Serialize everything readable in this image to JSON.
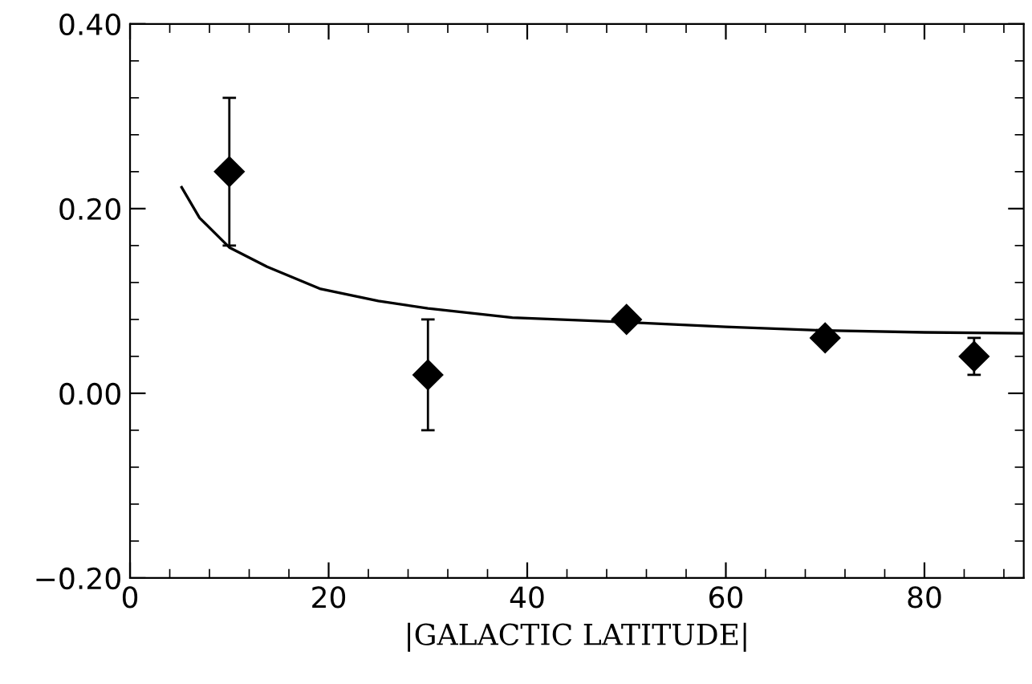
{
  "chart_data": {
    "type": "scatter",
    "xlabel": "|GALACTIC LATITUDE|",
    "xlim": [
      0,
      90
    ],
    "ylim": [
      -0.2,
      0.4
    ],
    "xticks": [
      0,
      20,
      40,
      60,
      80
    ],
    "yticks": [
      {
        "value": -0.2,
        "label": "−0.20"
      },
      {
        "value": 0.0,
        "label": "0.00"
      },
      {
        "value": 0.2,
        "label": "0.20"
      },
      {
        "value": 0.4,
        "label": "0.40"
      }
    ],
    "grid": false,
    "legend": false,
    "series": [
      {
        "color": "#000000",
        "marker": "diamond",
        "x": [
          10,
          30,
          50,
          70,
          85
        ],
        "values": [
          0.24,
          0.02,
          0.08,
          0.06,
          0.04
        ],
        "errors": [
          [
            0.16,
            0.32
          ],
          [
            -0.04,
            0.08
          ],
          null,
          null,
          [
            0.02,
            0.06
          ]
        ]
      },
      {
        "type": "line",
        "color": "#000000",
        "marker": "none",
        "line_style": "solid",
        "x": [
          5.2,
          7,
          10,
          13.8,
          19.2,
          25,
          30,
          38.5,
          50,
          60,
          70,
          80,
          90
        ],
        "values": [
          0.223,
          0.19,
          0.158,
          0.137,
          0.113,
          0.1,
          0.092,
          0.082,
          0.077,
          0.072,
          0.068,
          0.066,
          0.065
        ]
      }
    ]
  }
}
